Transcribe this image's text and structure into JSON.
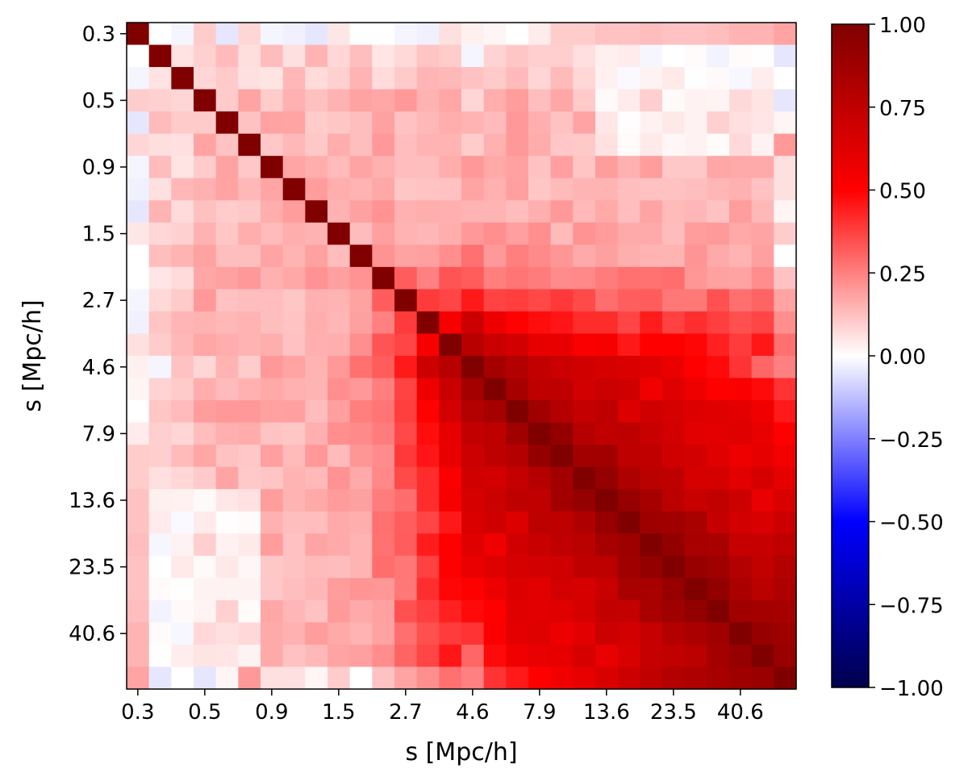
{
  "chart_data": {
    "type": "heatmap",
    "title": "",
    "xlabel": "s [Mpc/h]",
    "ylabel": "s [Mpc/h]",
    "n_bins": 30,
    "tick_labels": [
      "0.3",
      "0.5",
      "0.9",
      "1.5",
      "2.7",
      "4.6",
      "7.9",
      "13.6",
      "23.5",
      "40.6"
    ],
    "tick_bin_index": [
      0,
      3,
      6,
      9,
      12,
      15,
      18,
      21,
      24,
      27
    ],
    "colormap": "seismic",
    "value_range": [
      -1.0,
      1.0
    ],
    "colorbar_ticks": [
      1.0,
      0.75,
      0.5,
      0.25,
      0.0,
      -0.25,
      -0.5,
      -0.75,
      -1.0
    ],
    "colorbar_tick_labels": [
      "1.00",
      "0.75",
      "0.50",
      "0.25",
      "0.00",
      "−0.25",
      "−0.50",
      "−0.75",
      "−1.00"
    ],
    "diagonal_value": 1.0,
    "structure": {
      "small_scale_bins_0_to_9": "weak correlation, roughly -0.1 to 0.2",
      "large_scale_block_bins_12_to_29": "strong positive correlation, 0.5 to 0.95",
      "cross_block": "moderate correlation 0.2 to 0.4"
    },
    "matrix_rows_sample": {
      "row_0": [
        1.0,
        0.0,
        -0.02,
        0.1,
        -0.05,
        0.08,
        -0.02,
        -0.03,
        -0.05,
        0.05,
        0.0,
        0.0,
        -0.02,
        -0.03,
        0.06,
        0.03,
        0.02,
        0.0,
        0.04,
        0.1,
        0.1,
        0.12,
        0.12,
        0.13,
        0.12,
        0.12,
        0.13,
        0.15,
        0.15,
        0.18
      ],
      "row_15": [
        0.02,
        -0.02,
        0.12,
        0.08,
        0.15,
        0.1,
        0.2,
        0.18,
        0.15,
        0.2,
        0.28,
        0.32,
        0.45,
        0.7,
        0.78,
        1.0,
        0.86,
        0.8,
        0.74,
        0.7,
        0.68,
        0.66,
        0.64,
        0.62,
        0.58,
        0.5,
        0.48,
        0.4,
        0.3,
        0.25
      ],
      "row_29": [
        0.12,
        -0.05,
        0.0,
        -0.05,
        0.02,
        0.2,
        0.06,
        0.06,
        0.02,
        0.1,
        0.0,
        0.12,
        0.18,
        0.22,
        0.28,
        0.32,
        0.4,
        0.45,
        0.5,
        0.55,
        0.6,
        0.65,
        0.7,
        0.75,
        0.8,
        0.82,
        0.85,
        0.88,
        0.9,
        1.0
      ]
    }
  }
}
